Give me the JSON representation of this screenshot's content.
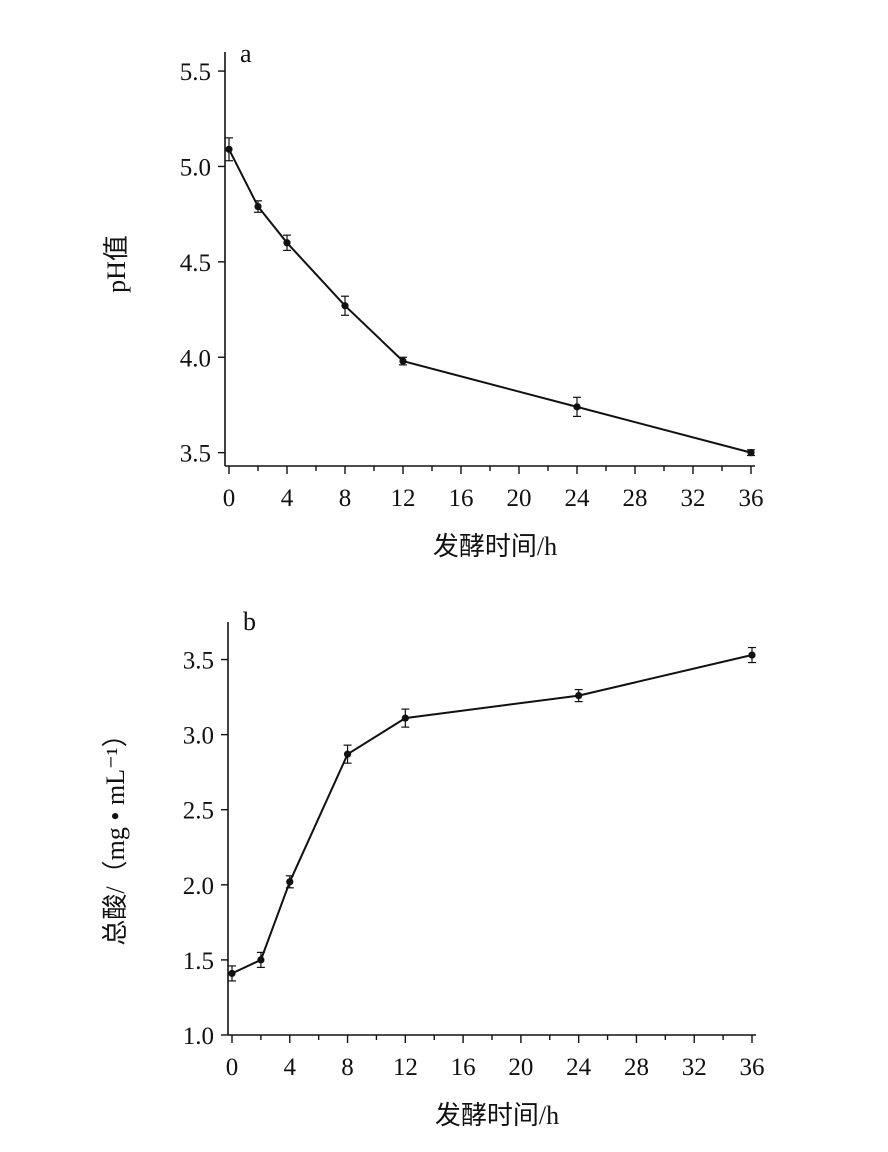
{
  "chart_data": [
    {
      "type": "line",
      "panel_label": "a",
      "xlabel": "发酵时间/h",
      "ylabel": "pH值",
      "x_ticks": [
        0,
        4,
        8,
        12,
        16,
        20,
        24,
        28,
        32,
        36
      ],
      "x_tick_labels": [
        "0",
        "4",
        "8",
        "12",
        "16",
        "20",
        "24",
        "28",
        "32",
        "36"
      ],
      "y_ticks": [
        3.5,
        4.0,
        4.5,
        5.0,
        5.5
      ],
      "y_tick_labels": [
        "3.5",
        "4.0",
        "4.5",
        "5.0",
        "5.5"
      ],
      "xlim": [
        0,
        36
      ],
      "ylim": [
        3.43,
        5.6
      ],
      "grid": false,
      "series": [
        {
          "x": [
            0,
            2,
            4,
            8,
            12,
            24,
            36
          ],
          "y": [
            5.09,
            4.79,
            4.6,
            4.27,
            3.98,
            3.74,
            3.5
          ],
          "error": [
            0.06,
            0.03,
            0.04,
            0.05,
            0.02,
            0.05,
            0.015
          ]
        }
      ]
    },
    {
      "type": "line",
      "panel_label": "b",
      "xlabel": "发酵时间/h",
      "ylabel": "总酸/（mg • mL⁻¹）",
      "x_ticks": [
        0,
        4,
        8,
        12,
        16,
        20,
        24,
        28,
        32,
        36
      ],
      "x_tick_labels": [
        "0",
        "4",
        "8",
        "12",
        "16",
        "20",
        "24",
        "28",
        "32",
        "36"
      ],
      "y_ticks": [
        1.0,
        1.5,
        2.0,
        2.5,
        3.0,
        3.5
      ],
      "y_tick_labels": [
        "1.0",
        "1.5",
        "2.0",
        "2.5",
        "3.0",
        "3.5"
      ],
      "xlim": [
        0,
        36
      ],
      "ylim": [
        1.0,
        3.75
      ],
      "grid": false,
      "series": [
        {
          "x": [
            0,
            2,
            4,
            8,
            12,
            24,
            36
          ],
          "y": [
            1.41,
            1.5,
            2.02,
            2.87,
            3.11,
            3.26,
            3.53
          ],
          "error": [
            0.05,
            0.05,
            0.04,
            0.06,
            0.06,
            0.04,
            0.05
          ]
        }
      ]
    }
  ]
}
